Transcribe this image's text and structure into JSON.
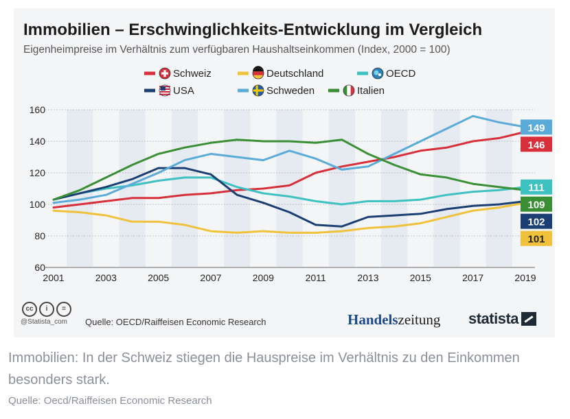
{
  "header": {
    "title": "Immobilien – Erschwinglichkeits-Entwicklung im Vergleich",
    "subtitle": "Eigenheimpreise im Verhältnis zum verfügbaren Haushaltseinkommen (Index, 2000 = 100)"
  },
  "footer": {
    "cc_labels": [
      "cc",
      "i",
      "="
    ],
    "handle": "@Statista_com",
    "source": "Quelle: OECD/Raiffeisen Economic Research",
    "publisher_part1": "Handels",
    "publisher_part2": "zeitung",
    "brand": "statista"
  },
  "caption": {
    "text": "Immobilien: In der Schweiz stiegen die Hauspreise im Verhältnis zu den Einkommen besonders stark.",
    "source": "Quelle: Oecd/Raiffeisen Economic Research"
  },
  "chart_data": {
    "type": "line",
    "x": [
      2001,
      2002,
      2003,
      2004,
      2005,
      2006,
      2007,
      2008,
      2009,
      2010,
      2011,
      2012,
      2013,
      2014,
      2015,
      2016,
      2017,
      2018,
      2019
    ],
    "x_ticks": [
      2001,
      2003,
      2005,
      2007,
      2009,
      2011,
      2013,
      2015,
      2017,
      2019
    ],
    "y_ticks": [
      60,
      80,
      100,
      120,
      140,
      160
    ],
    "ylim": [
      60,
      160
    ],
    "grid": true,
    "legend_position": "top",
    "series": [
      {
        "name": "Schweiz",
        "color": "#d7303a",
        "flag": "ch",
        "end_label": "146",
        "values": [
          98,
          100,
          102,
          104,
          104,
          106,
          107,
          109,
          110,
          112,
          120,
          124,
          127,
          130,
          134,
          136,
          140,
          142,
          146
        ]
      },
      {
        "name": "Deutschland",
        "color": "#f0c23b",
        "flag": "de",
        "end_label": "101",
        "values": [
          96,
          95,
          93,
          89,
          89,
          87,
          83,
          82,
          83,
          82,
          82,
          83,
          85,
          86,
          88,
          92,
          96,
          98,
          101
        ]
      },
      {
        "name": "OECD",
        "color": "#3ec1c1",
        "flag": "oecd",
        "end_label": "111",
        "values": [
          103,
          107,
          110,
          112,
          115,
          117,
          117,
          111,
          107,
          105,
          102,
          100,
          102,
          102,
          103,
          106,
          108,
          109,
          111
        ]
      },
      {
        "name": "USA",
        "color": "#1b3f73",
        "flag": "us",
        "end_label": "102",
        "values": [
          103,
          107,
          111,
          116,
          123,
          123,
          119,
          106,
          101,
          95,
          87,
          86,
          92,
          93,
          94,
          97,
          99,
          100,
          102
        ]
      },
      {
        "name": "Schweden",
        "color": "#5aabd8",
        "flag": "se",
        "end_label": "149",
        "values": [
          101,
          103,
          106,
          113,
          120,
          128,
          132,
          130,
          128,
          134,
          129,
          122,
          124,
          132,
          140,
          148,
          156,
          152,
          149
        ]
      },
      {
        "name": "Italien",
        "color": "#3a8f34",
        "flag": "it",
        "end_label": "109",
        "values": [
          103,
          109,
          117,
          125,
          132,
          136,
          139,
          141,
          140,
          140,
          139,
          141,
          132,
          125,
          119,
          117,
          113,
          111,
          109
        ]
      }
    ]
  }
}
